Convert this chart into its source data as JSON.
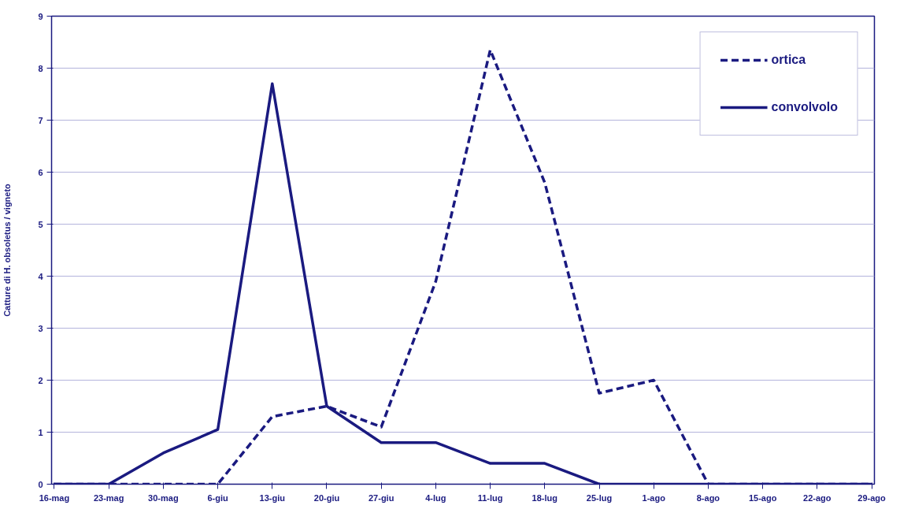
{
  "chart_data": {
    "type": "line",
    "ylabel": "Catture di H. obsoletus / vigneto",
    "categories": [
      "16-mag",
      "23-mag",
      "30-mag",
      "6-giu",
      "13-giu",
      "20-giu",
      "27-giu",
      "4-lug",
      "11-lug",
      "18-lug",
      "25-lug",
      "1-ago",
      "8-ago",
      "15-ago",
      "22-ago",
      "29-ago"
    ],
    "series": [
      {
        "name": "ortica",
        "color": "#1a1a80",
        "line_style": "dashed",
        "values": [
          0,
          0,
          0,
          0,
          1.3,
          1.5,
          1.1,
          3.9,
          8.35,
          5.8,
          1.75,
          2.0,
          0,
          0,
          0,
          0
        ]
      },
      {
        "name": "convolvolo",
        "color": "#1a1a80",
        "line_style": "solid",
        "values": [
          0,
          0,
          0.6,
          1.05,
          7.7,
          1.5,
          0.8,
          0.8,
          0.4,
          0.4,
          0,
          0,
          0,
          0,
          0,
          0
        ]
      }
    ],
    "ylim": [
      0,
      9
    ],
    "yticks": [
      0,
      1,
      2,
      3,
      4,
      5,
      6,
      7,
      8,
      9
    ],
    "grid": "y",
    "legend": "top right"
  }
}
